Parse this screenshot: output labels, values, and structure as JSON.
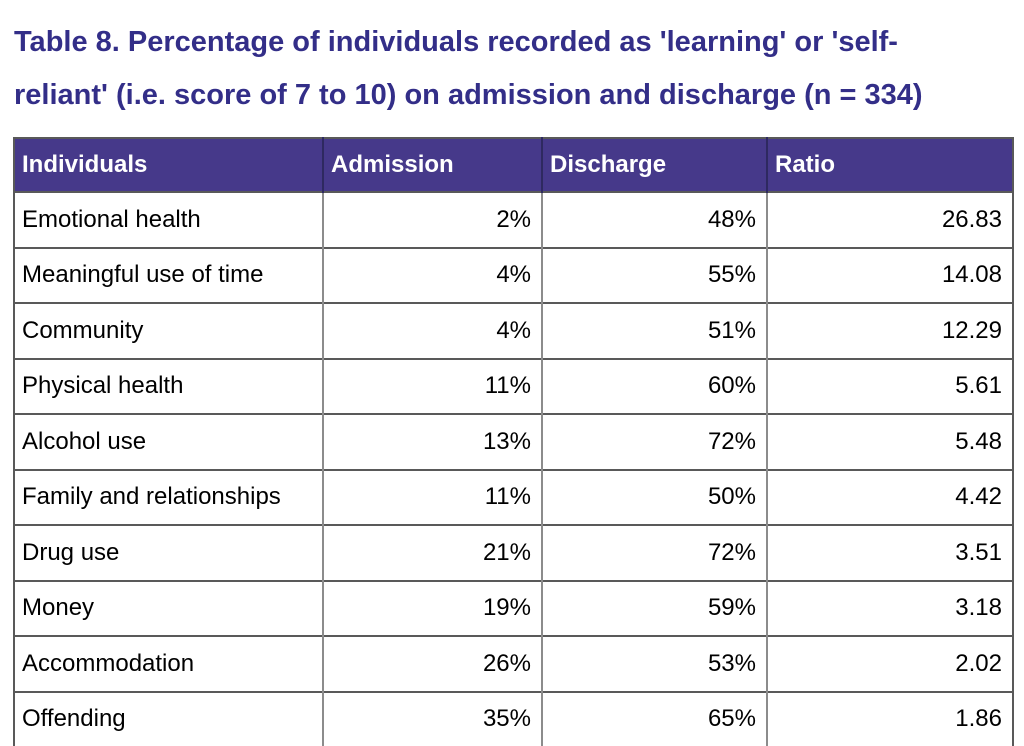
{
  "title": {
    "line1": "Table 8. Percentage of individuals recorded as 'learning' or 'self-",
    "line2": "reliant' (i.e. score of 7 to 10) on admission and discharge (n = 334)"
  },
  "colors": {
    "header_bg": "#46398A",
    "header_text": "#FFFFFF",
    "title_color": "#332E88",
    "frame": "#595959",
    "hline": "#595959",
    "vline": "#8C8C8C",
    "header_sep": "#2E2960",
    "body_text": "#000000"
  },
  "table": {
    "columns": [
      "Individuals",
      "Admission",
      "Discharge",
      "Ratio"
    ],
    "rows": [
      {
        "name": "Emotional health",
        "admission": "2%",
        "discharge": "48%",
        "ratio": "26.83"
      },
      {
        "name": "Meaningful use of time",
        "admission": "4%",
        "discharge": "55%",
        "ratio": "14.08"
      },
      {
        "name": "Community",
        "admission": "4%",
        "discharge": "51%",
        "ratio": "12.29"
      },
      {
        "name": "Physical health",
        "admission": "11%",
        "discharge": "60%",
        "ratio": "5.61"
      },
      {
        "name": "Alcohol use",
        "admission": "13%",
        "discharge": "72%",
        "ratio": "5.48"
      },
      {
        "name": "Family and relationships",
        "admission": "11%",
        "discharge": "50%",
        "ratio": "4.42"
      },
      {
        "name": "Drug use",
        "admission": "21%",
        "discharge": "72%",
        "ratio": "3.51"
      },
      {
        "name": "Money",
        "admission": "19%",
        "discharge": "59%",
        "ratio": "3.18"
      },
      {
        "name": "Accommodation",
        "admission": "26%",
        "discharge": "53%",
        "ratio": "2.02"
      },
      {
        "name": "Offending",
        "admission": "35%",
        "discharge": "65%",
        "ratio": "1.86"
      }
    ]
  }
}
